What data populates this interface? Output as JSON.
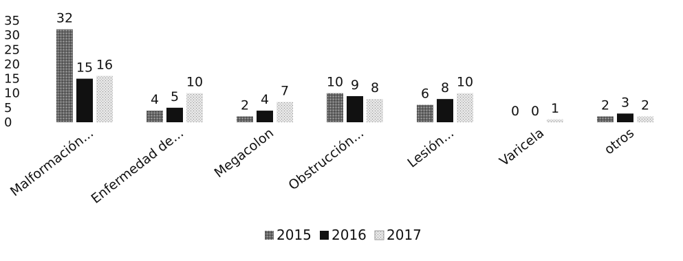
{
  "chart_data": {
    "type": "bar",
    "categories": [
      "Malformación...",
      "Enfermedad de...",
      "Megacolon",
      "Obstrucción...",
      "Lesión...",
      "Varicela",
      "otros"
    ],
    "series": [
      {
        "name": "2015",
        "values": [
          32,
          4,
          2,
          10,
          6,
          0,
          2
        ],
        "color": "#6e6e6e",
        "pattern": "dots-dark"
      },
      {
        "name": "2016",
        "values": [
          15,
          5,
          4,
          9,
          8,
          0,
          3
        ],
        "color": "#111111",
        "pattern": "solid"
      },
      {
        "name": "2017",
        "values": [
          16,
          10,
          7,
          8,
          10,
          1,
          2
        ],
        "color": "#cfcfcf",
        "pattern": "dots-light"
      }
    ],
    "yticks": [
      "0",
      "5",
      "10",
      "15",
      "20",
      "25",
      "30",
      "35"
    ],
    "ylim": [
      0,
      35
    ],
    "grid": false,
    "legend_position": "bottom-center",
    "xlabel": "",
    "ylabel": "",
    "title": ""
  }
}
